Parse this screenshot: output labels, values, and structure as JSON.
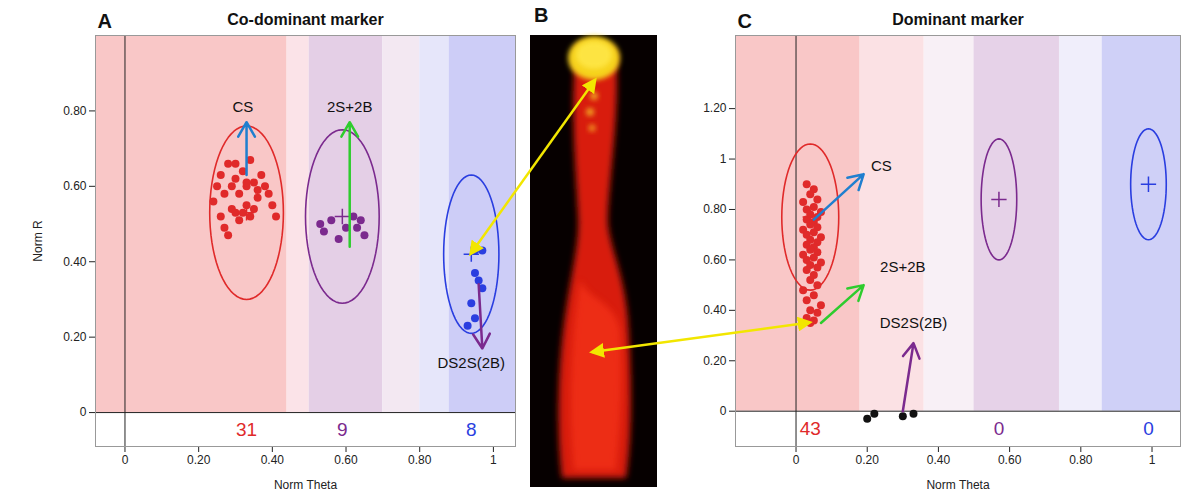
{
  "chart_data": [
    {
      "type": "scatter",
      "panel": "A",
      "title": "Co-dominant marker",
      "xlabel": "Norm Theta",
      "ylabel": "Norm R",
      "xlim": [
        -0.08,
        1.06
      ],
      "ylim": [
        -0.09,
        1.0
      ],
      "xticks": [
        0,
        {
          "value": 0.2,
          "label": "0.20"
        },
        {
          "value": 0.4,
          "label": "0.40"
        },
        {
          "value": 0.6,
          "label": "0.60"
        },
        {
          "value": 0.8,
          "label": "0.80"
        },
        1
      ],
      "yticks": [
        0,
        {
          "value": 0.2,
          "label": "0.20"
        },
        {
          "value": 0.4,
          "label": "0.40"
        },
        {
          "value": 0.6,
          "label": "0.60"
        },
        {
          "value": 0.8,
          "label": "0.80"
        }
      ],
      "marker": "circle",
      "regions": [
        {
          "x": [
            -0.08,
            0.44
          ],
          "color": "#f9c7c7"
        },
        {
          "x": [
            0.44,
            0.5
          ],
          "color": "#fbe3e8"
        },
        {
          "x": [
            0.5,
            0.7
          ],
          "color": "#e4cfe6"
        },
        {
          "x": [
            0.7,
            0.8
          ],
          "color": "#f3e8f2"
        },
        {
          "x": [
            0.8,
            0.88
          ],
          "color": "#e6e6fa"
        },
        {
          "x": [
            0.88,
            1.06
          ],
          "color": "#cdcdf7"
        }
      ],
      "series": [
        {
          "color": "#e02a2a",
          "count": 31,
          "center": [
            0.33,
            0.53
          ],
          "ellipse_radius": [
            0.1,
            0.23
          ],
          "x": [
            0.25,
            0.26,
            0.27,
            0.28,
            0.29,
            0.3,
            0.31,
            0.32,
            0.33,
            0.34,
            0.35,
            0.36,
            0.37,
            0.38,
            0.39,
            0.4,
            0.41,
            0.26,
            0.27,
            0.29,
            0.3,
            0.31,
            0.32,
            0.33,
            0.34,
            0.35,
            0.28,
            0.24,
            0.36,
            0.33,
            0.3
          ],
          "y": [
            0.6,
            0.63,
            0.58,
            0.66,
            0.6,
            0.62,
            0.58,
            0.64,
            0.6,
            0.67,
            0.61,
            0.59,
            0.63,
            0.6,
            0.58,
            0.55,
            0.52,
            0.52,
            0.49,
            0.54,
            0.53,
            0.51,
            0.53,
            0.55,
            0.52,
            0.54,
            0.47,
            0.56,
            0.57,
            0.61,
            0.66
          ]
        },
        {
          "color": "#7b2a8e",
          "count": 9,
          "center": [
            0.59,
            0.52
          ],
          "ellipse_radius": [
            0.1,
            0.23
          ],
          "x": [
            0.53,
            0.54,
            0.56,
            0.58,
            0.6,
            0.62,
            0.63,
            0.64,
            0.65
          ],
          "y": [
            0.5,
            0.48,
            0.51,
            0.46,
            0.49,
            0.52,
            0.49,
            0.51,
            0.47
          ]
        },
        {
          "color": "#2a3ee0",
          "count": 8,
          "center": [
            0.94,
            0.42
          ],
          "ellipse_radius": [
            0.075,
            0.21
          ],
          "x": [
            0.95,
            0.97,
            0.95,
            0.96,
            0.97,
            0.94,
            0.95,
            0.93
          ],
          "y": [
            0.43,
            0.43,
            0.37,
            0.35,
            0.33,
            0.29,
            0.25,
            0.23
          ]
        }
      ],
      "annotations": [
        {
          "text": "CS",
          "x": 0.32,
          "y": 0.81,
          "color": "#1f7fcf",
          "arrow": [
            0.33,
            0.63,
            0.33,
            0.77
          ]
        },
        {
          "text": "2S+2B",
          "x": 0.61,
          "y": 0.81,
          "color": "#2ecc2e",
          "arrow": [
            0.61,
            0.44,
            0.61,
            0.77
          ]
        },
        {
          "text": "DS2S(2B)",
          "x": 0.94,
          "y": 0.13,
          "color": "#7b2a8e",
          "arrow": [
            0.96,
            0.34,
            0.97,
            0.17
          ]
        }
      ]
    },
    {
      "type": "scatter",
      "panel": "C",
      "title": "Dominant marker",
      "xlabel": "Norm Theta",
      "xlim": [
        -0.17,
        1.08
      ],
      "ylim": [
        -0.14,
        1.49
      ],
      "xticks": [
        0,
        {
          "value": 0.2,
          "label": "0.20"
        },
        {
          "value": 0.4,
          "label": "0.40"
        },
        {
          "value": 0.6,
          "label": "0.60"
        },
        {
          "value": 0.8,
          "label": "0.80"
        },
        1
      ],
      "yticks": [
        0,
        {
          "value": 0.2,
          "label": "0.20"
        },
        {
          "value": 0.4,
          "label": "0.40"
        },
        {
          "value": 0.6,
          "label": "0.60"
        },
        {
          "value": 0.8,
          "label": "0.80"
        },
        1,
        {
          "value": 1.2,
          "label": "1.20"
        }
      ],
      "marker": "circle",
      "regions": [
        {
          "x": [
            -0.17,
            0.18
          ],
          "color": "#f9c7c7"
        },
        {
          "x": [
            0.18,
            0.36
          ],
          "color": "#fbe1e4"
        },
        {
          "x": [
            0.36,
            0.5
          ],
          "color": "#f8f0f6"
        },
        {
          "x": [
            0.5,
            0.74
          ],
          "color": "#e6d2e8"
        },
        {
          "x": [
            0.74,
            0.86
          ],
          "color": "#f0eefb"
        },
        {
          "x": [
            0.86,
            1.08
          ],
          "color": "#cfd0f7"
        }
      ],
      "series": [
        {
          "color": "#e02a2a",
          "count": 43,
          "center": [
            0.04,
            0.77
          ],
          "ellipse_radius": [
            0.08,
            0.29
          ],
          "x": [
            0.03,
            0.05,
            0.04,
            0.06,
            0.02,
            0.05,
            0.03,
            0.07,
            0.04,
            0.06,
            0.03,
            0.05,
            0.04,
            0.06,
            0.02,
            0.05,
            0.03,
            0.07,
            0.04,
            0.06,
            0.03,
            0.05,
            0.04,
            0.06,
            0.02,
            0.05,
            0.03,
            0.07,
            0.04,
            0.06,
            0.03,
            0.05,
            0.04,
            0.06,
            0.02,
            0.05,
            0.03,
            0.07,
            0.04,
            0.06,
            0.03,
            0.05,
            0.04
          ],
          "y": [
            0.9,
            0.88,
            0.86,
            0.84,
            0.83,
            0.81,
            0.8,
            0.79,
            0.78,
            0.77,
            0.76,
            0.75,
            0.74,
            0.73,
            0.72,
            0.71,
            0.7,
            0.69,
            0.68,
            0.67,
            0.66,
            0.65,
            0.64,
            0.63,
            0.62,
            0.61,
            0.6,
            0.59,
            0.58,
            0.57,
            0.56,
            0.54,
            0.52,
            0.5,
            0.48,
            0.46,
            0.44,
            0.42,
            0.4,
            0.39,
            0.37,
            0.36,
            0.35
          ]
        },
        {
          "color": "#7b2a8e",
          "count": 0,
          "center": [
            0.57,
            0.84
          ],
          "ellipse_radius": [
            0.05,
            0.24
          ],
          "x": [],
          "y": []
        },
        {
          "color": "#2a3ee0",
          "count": 0,
          "center": [
            0.99,
            0.9
          ],
          "ellipse_radius": [
            0.05,
            0.22
          ],
          "x": [],
          "y": []
        },
        {
          "color": "#111111",
          "x": [
            0.2,
            0.22,
            0.3,
            0.33
          ],
          "y": [
            -0.03,
            -0.01,
            -0.02,
            -0.01
          ]
        }
      ],
      "annotations": [
        {
          "text": "CS",
          "x": 0.24,
          "y": 0.97,
          "color": "#1f7fcf",
          "arrow": [
            0.05,
            0.76,
            0.19,
            0.94
          ]
        },
        {
          "text": "2S+2B",
          "x": 0.3,
          "y": 0.57,
          "color": "#2ecc2e",
          "arrow": [
            0.07,
            0.35,
            0.19,
            0.5
          ]
        },
        {
          "text": "DS2S(2B)",
          "x": 0.33,
          "y": 0.35,
          "color": "#7b2a8e",
          "arrow": [
            0.3,
            0.0,
            0.33,
            0.27
          ]
        }
      ]
    }
  ],
  "image_panel": {
    "panel": "B"
  }
}
